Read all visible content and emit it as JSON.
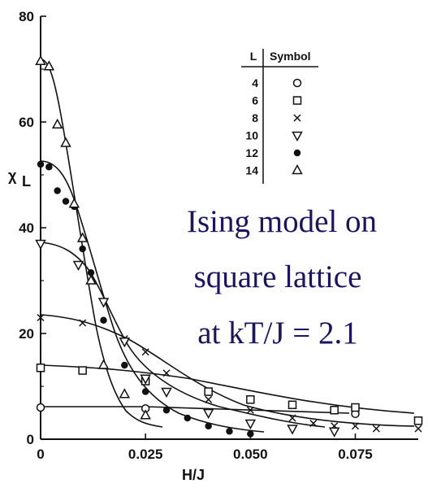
{
  "chart_data": {
    "type": "scatter",
    "xlabel": "H/J",
    "ylabel": "χ",
    "ylabel_sub": "L",
    "xlim": [
      0,
      0.09
    ],
    "ylim": [
      0,
      80
    ],
    "x_ticks": [
      0,
      0.025,
      0.05,
      0.075
    ],
    "x_tick_labels": [
      "0",
      "0.025",
      "0.050",
      "0.075"
    ],
    "y_ticks": [
      0,
      20,
      40,
      60,
      80
    ],
    "y_tick_labels": [
      "0",
      "20",
      "40",
      "60",
      "80"
    ],
    "grid": false,
    "legend": {
      "position": "top-right",
      "header_l": "L",
      "header_symbol": "Symbol"
    },
    "annotation": [
      "Ising model on",
      "square lattice",
      "at kT/J = 2.1"
    ],
    "series": [
      {
        "name": "4",
        "marker": "circle-open",
        "x": [
          0,
          0.025,
          0.075
        ],
        "y": [
          6,
          5.8,
          4.8
        ]
      },
      {
        "name": "6",
        "marker": "square-open",
        "x": [
          0,
          0.01,
          0.025,
          0.04,
          0.05,
          0.06,
          0.07,
          0.075,
          0.09
        ],
        "y": [
          13.5,
          13,
          11,
          9,
          7.5,
          6.5,
          5.5,
          6,
          3.5
        ]
      },
      {
        "name": "8",
        "marker": "x",
        "x": [
          0,
          0.01,
          0.02,
          0.025,
          0.03,
          0.04,
          0.05,
          0.06,
          0.065,
          0.07,
          0.075,
          0.08,
          0.09
        ],
        "y": [
          23,
          22,
          19,
          16.5,
          12.5,
          7.5,
          5.5,
          4,
          3,
          2.5,
          2.5,
          2,
          2
        ]
      },
      {
        "name": "10",
        "marker": "triangle-down-open",
        "x": [
          0,
          0.009,
          0.015,
          0.02,
          0.025,
          0.03,
          0.04,
          0.05,
          0.06,
          0.07
        ],
        "y": [
          37,
          33,
          26,
          18.5,
          11.5,
          9,
          5,
          3,
          2,
          1.5
        ]
      },
      {
        "name": "12",
        "marker": "circle-filled",
        "x": [
          0,
          0.002,
          0.004,
          0.006,
          0.008,
          0.01,
          0.012,
          0.015,
          0.02,
          0.025,
          0.03,
          0.035,
          0.04,
          0.045,
          0.05
        ],
        "y": [
          52,
          51.5,
          47,
          45,
          44,
          36,
          31.5,
          22.5,
          14,
          9,
          5.5,
          4,
          2.5,
          1.5,
          1
        ]
      },
      {
        "name": "14",
        "marker": "triangle-up-open",
        "x": [
          0,
          0.002,
          0.004,
          0.006,
          0.008,
          0.01,
          0.012,
          0.015,
          0.02,
          0.025
        ],
        "y": [
          71.5,
          70.5,
          59.5,
          56,
          44.5,
          38,
          30,
          14,
          8.5,
          4.5
        ]
      }
    ]
  }
}
